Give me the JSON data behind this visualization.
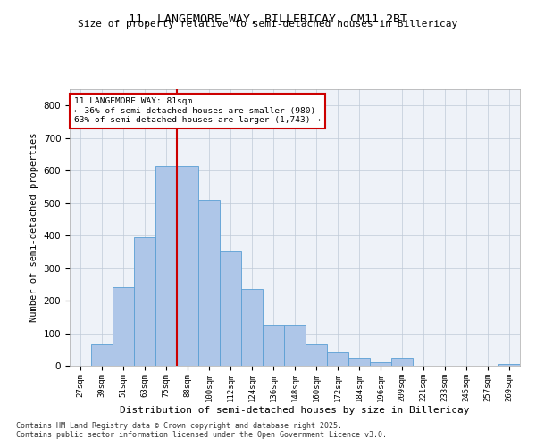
{
  "title1": "11, LANGEMORE WAY, BILLERICAY, CM11 2BT",
  "title2": "Size of property relative to semi-detached houses in Billericay",
  "xlabel": "Distribution of semi-detached houses by size in Billericay",
  "ylabel": "Number of semi-detached properties",
  "bar_labels": [
    "27sqm",
    "39sqm",
    "51sqm",
    "63sqm",
    "75sqm",
    "88sqm",
    "100sqm",
    "112sqm",
    "124sqm",
    "136sqm",
    "148sqm",
    "160sqm",
    "172sqm",
    "184sqm",
    "196sqm",
    "209sqm",
    "221sqm",
    "233sqm",
    "245sqm",
    "257sqm",
    "269sqm"
  ],
  "bar_values": [
    0,
    65,
    240,
    395,
    615,
    615,
    510,
    355,
    235,
    125,
    125,
    65,
    40,
    25,
    10,
    25,
    0,
    0,
    0,
    0,
    5
  ],
  "bar_color": "#aec6e8",
  "bar_edge_color": "#5a9fd4",
  "property_value": 81,
  "property_label": "11 LANGEMORE WAY: 81sqm",
  "pct_smaller": 36,
  "count_smaller": 980,
  "pct_larger": 63,
  "count_larger": 1743,
  "line_color": "#cc0000",
  "box_edge_color": "#cc0000",
  "ylim": [
    0,
    850
  ],
  "yticks": [
    0,
    100,
    200,
    300,
    400,
    500,
    600,
    700,
    800
  ],
  "bg_color": "#eef2f8",
  "footnote1": "Contains HM Land Registry data © Crown copyright and database right 2025.",
  "footnote2": "Contains public sector information licensed under the Open Government Licence v3.0."
}
